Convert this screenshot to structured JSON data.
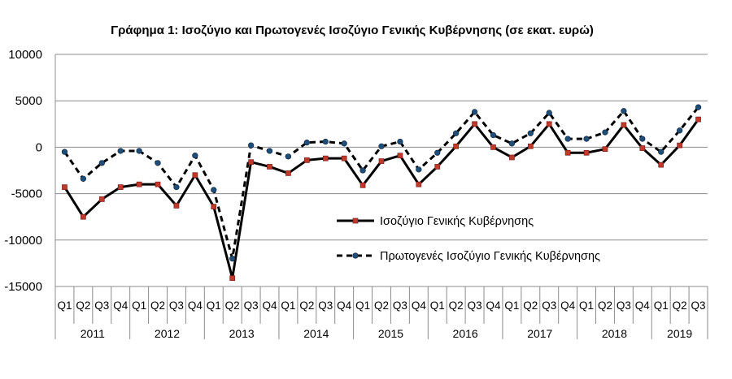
{
  "chart_data": {
    "type": "line",
    "title": "Γράφημα 1: Ισοζύγιο και Πρωτογενές Ισοζύγιο Γενικής Κυβέρνησης (σε εκατ. ευρώ)",
    "xlabel": "",
    "ylabel": "",
    "ylim": [
      -15000,
      10000
    ],
    "y_ticks": [
      10000,
      5000,
      0,
      -5000,
      -10000,
      -15000
    ],
    "y_tick_labels": [
      "10000",
      "5000",
      "0",
      "-5000",
      "-10000",
      "-15000"
    ],
    "grid": true,
    "legend_position": "center-right",
    "categories": [
      "Q1",
      "Q2",
      "Q3",
      "Q4",
      "Q1",
      "Q2",
      "Q3",
      "Q4",
      "Q1",
      "Q2",
      "Q3",
      "Q4",
      "Q1",
      "Q2",
      "Q3",
      "Q4",
      "Q1",
      "Q2",
      "Q3",
      "Q4",
      "Q1",
      "Q2",
      "Q3",
      "Q4",
      "Q1",
      "Q2",
      "Q3",
      "Q4",
      "Q1",
      "Q2",
      "Q3",
      "Q4",
      "Q1",
      "Q2",
      "Q3"
    ],
    "years": [
      {
        "label": "2011",
        "count": 4
      },
      {
        "label": "2012",
        "count": 4
      },
      {
        "label": "2013",
        "count": 4
      },
      {
        "label": "2014",
        "count": 4
      },
      {
        "label": "2015",
        "count": 4
      },
      {
        "label": "2016",
        "count": 4
      },
      {
        "label": "2017",
        "count": 4
      },
      {
        "label": "2018",
        "count": 4
      },
      {
        "label": "2019",
        "count": 3
      }
    ],
    "series": [
      {
        "name": "Ισοζύγιο Γενικής Κυβέρνησης",
        "color": "#000000",
        "marker_color": "#c0392b",
        "style": "solid",
        "values": [
          -4300,
          -7500,
          -5600,
          -4300,
          -4000,
          -4000,
          -6300,
          -3000,
          -6400,
          -14100,
          -1600,
          -2100,
          -2800,
          -1400,
          -1200,
          -1200,
          -4100,
          -1500,
          -900,
          -4000,
          -2100,
          100,
          2500,
          0,
          -1100,
          100,
          2500,
          -600,
          -600,
          -200,
          2400,
          -100,
          -1900,
          200,
          3000
        ]
      },
      {
        "name": "Πρωτογενές Ισοζύγιο Γενικής Κυβέρνησης",
        "color": "#000000",
        "marker_color": "#1f4e79",
        "style": "dashed",
        "values": [
          -500,
          -3400,
          -1700,
          -400,
          -400,
          -1700,
          -4300,
          -900,
          -4600,
          -12000,
          200,
          -400,
          -1000,
          500,
          600,
          400,
          -2500,
          100,
          600,
          -2400,
          -600,
          1500,
          3800,
          1300,
          400,
          1500,
          3700,
          900,
          900,
          1600,
          3900,
          900,
          -500,
          1800,
          4300
        ]
      }
    ]
  }
}
